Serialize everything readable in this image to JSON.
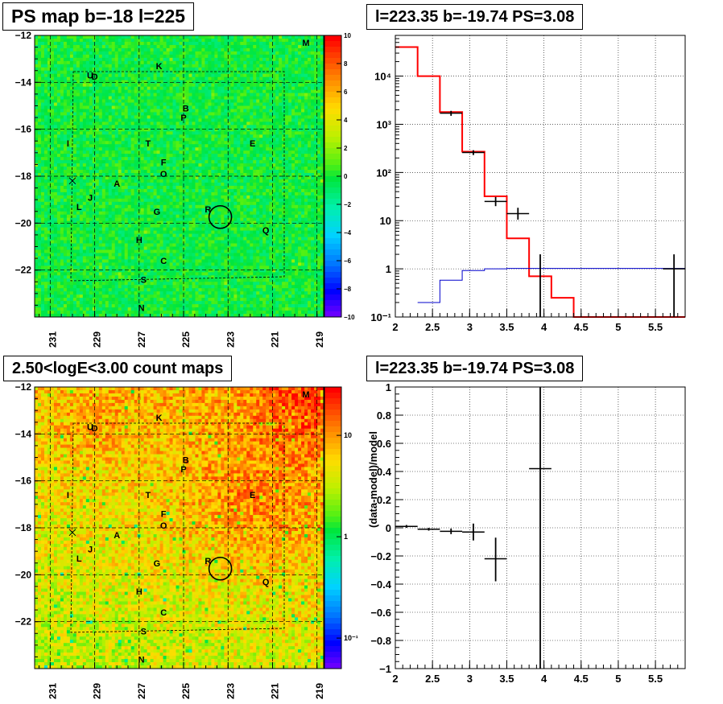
{
  "panels": {
    "tl_title": "PS map b=-18 l=225",
    "tr_title": "l=223.35 b=-19.74 PS=3.08",
    "bl_title": "2.50<logE<3.00 count maps",
    "br_title": "l=223.35 b=-19.74 PS=3.08"
  },
  "chart_data": [
    {
      "type": "heatmap",
      "name": "ps-map",
      "title": "PS map b=-18 l=225",
      "x_ticks": [
        "231",
        "229",
        "227",
        "225",
        "223",
        "221",
        "219"
      ],
      "y_ticks": [
        "-12",
        "-14",
        "-16",
        "-18",
        "-20",
        "-22"
      ],
      "xlim": [
        231.7,
        218.7
      ],
      "ylim": [
        -24,
        -12
      ],
      "colorbar": {
        "ticks": [
          "10",
          "8",
          "6",
          "4",
          "2",
          "0",
          "−2",
          "−4",
          "−6",
          "−8",
          "−10"
        ],
        "range": [
          -10,
          10
        ]
      },
      "sources": [
        {
          "label": "M",
          "l": 219.5,
          "b": -12.3
        },
        {
          "label": "K",
          "l": 226.1,
          "b": -13.3
        },
        {
          "label": "U",
          "l": 229.2,
          "b": -13.7
        },
        {
          "label": "D",
          "l": 229.0,
          "b": -13.75
        },
        {
          "label": "B",
          "l": 224.9,
          "b": -15.1
        },
        {
          "label": "P",
          "l": 225.0,
          "b": -15.5
        },
        {
          "label": "I",
          "l": 230.2,
          "b": -16.6
        },
        {
          "label": "T",
          "l": 226.6,
          "b": -16.6
        },
        {
          "label": "E",
          "l": 221.9,
          "b": -16.6
        },
        {
          "label": "F",
          "l": 225.9,
          "b": -17.4
        },
        {
          "label": "O",
          "l": 225.9,
          "b": -17.9
        },
        {
          "label": "A",
          "l": 228.0,
          "b": -18.3
        },
        {
          "label": "J",
          "l": 229.2,
          "b": -18.9
        },
        {
          "label": "L",
          "l": 229.7,
          "b": -19.3
        },
        {
          "label": "G",
          "l": 226.2,
          "b": -19.5
        },
        {
          "label": "R",
          "l": 223.9,
          "b": -19.4
        },
        {
          "label": "Q",
          "l": 221.3,
          "b": -20.3
        },
        {
          "label": "H",
          "l": 227.0,
          "b": -20.7
        },
        {
          "label": "C",
          "l": 225.9,
          "b": -21.6
        },
        {
          "label": "S",
          "l": 226.8,
          "b": -22.4
        },
        {
          "label": "N",
          "l": 226.9,
          "b": -23.6
        }
      ],
      "circle": {
        "l": 223.35,
        "b": -19.74
      }
    },
    {
      "type": "line",
      "name": "spectrum",
      "title": "l=223.35 b=-19.74 PS=3.08",
      "xlim": [
        2,
        5.9
      ],
      "ylim_log": [
        0.1,
        70000
      ],
      "x_ticks": [
        "2",
        "2.5",
        "3",
        "3.5",
        "4",
        "4.5",
        "5",
        "5.5"
      ],
      "y_ticks": [
        {
          "label": "10⁻¹",
          "v": 0.1
        },
        {
          "label": "1",
          "v": 1
        },
        {
          "label": "10",
          "v": 10
        },
        {
          "label": "10²",
          "v": 100
        },
        {
          "label": "10³",
          "v": 1000
        },
        {
          "label": "10⁴",
          "v": 10000
        }
      ],
      "series": [
        {
          "color": "#ff0000",
          "kind": "hist",
          "edges": [
            2.0,
            2.3,
            2.6,
            2.9,
            3.2,
            3.5,
            3.8,
            4.1,
            4.4,
            5.9
          ],
          "values": [
            40000,
            10000,
            1800,
            270,
            32,
            4.3,
            0.7,
            0.25,
            0.1
          ]
        },
        {
          "color": "#0000cc",
          "kind": "hist",
          "edges": [
            2.3,
            2.6,
            2.9,
            3.2,
            3.5,
            5.9
          ],
          "values": [
            0.2,
            0.58,
            0.92,
            1.0,
            1.02
          ]
        },
        {
          "color": "#000000",
          "kind": "points",
          "points": [
            {
              "x": 2.75,
              "y": 1700,
              "xerr": 0.15,
              "ylo": 1500,
              "yhi": 1900
            },
            {
              "x": 3.05,
              "y": 260,
              "xerr": 0.15,
              "ylo": 230,
              "yhi": 290
            },
            {
              "x": 3.35,
              "y": 25,
              "xerr": 0.15,
              "ylo": 20,
              "yhi": 31
            },
            {
              "x": 3.65,
              "y": 14,
              "xerr": 0.15,
              "ylo": 10.5,
              "yhi": 18.5
            },
            {
              "x": 3.95,
              "y": 0.1,
              "xerr": 0.0,
              "ylo": 0.1,
              "yhi": 2.0
            },
            {
              "x": 5.75,
              "y": 1.0,
              "xerr": 0.15,
              "ylo": 0.1,
              "yhi": 2.0
            }
          ]
        }
      ]
    },
    {
      "type": "heatmap",
      "name": "count-map",
      "title": "2.50<logE<3.00 count maps",
      "x_ticks": [
        "231",
        "229",
        "227",
        "225",
        "223",
        "221",
        "219"
      ],
      "y_ticks": [
        "-12",
        "-14",
        "-16",
        "-18",
        "-20",
        "-22"
      ],
      "colorbar": {
        "ticks": [
          {
            "label": "10",
            "v": 10
          },
          {
            "label": "1",
            "v": 1
          },
          {
            "label": "10⁻¹",
            "v": 0.1
          }
        ],
        "range": [
          0.05,
          30
        ]
      }
    },
    {
      "type": "scatter",
      "name": "residuals",
      "title": "l=223.35 b=-19.74 PS=3.08",
      "ylabel": "(data-model)/model",
      "xlim": [
        2,
        5.9
      ],
      "ylim": [
        -1,
        1
      ],
      "x_ticks": [
        "2",
        "2.5",
        "3",
        "3.5",
        "4",
        "4.5",
        "5",
        "5.5"
      ],
      "y_ticks": [
        "1",
        "0.8",
        "0.6",
        "0.4",
        "0.2",
        "0",
        "−0.2",
        "−0.4",
        "−0.6",
        "−0.8",
        "−1"
      ],
      "points": [
        {
          "x": 2.15,
          "y": 0.01,
          "xerr": 0.15,
          "ylo": 0.0,
          "yhi": 0.02
        },
        {
          "x": 2.45,
          "y": -0.01,
          "xerr": 0.15,
          "ylo": -0.02,
          "yhi": 0.0
        },
        {
          "x": 2.75,
          "y": -0.025,
          "xerr": 0.15,
          "ylo": -0.045,
          "yhi": -0.005
        },
        {
          "x": 3.05,
          "y": -0.03,
          "xerr": 0.15,
          "ylo": -0.09,
          "yhi": 0.03
        },
        {
          "x": 3.35,
          "y": -0.22,
          "xerr": 0.15,
          "ylo": -0.38,
          "yhi": -0.07
        },
        {
          "x": 3.95,
          "y": 0.42,
          "xerr": 0.15,
          "ylo": -1.0,
          "yhi": 1.0
        }
      ]
    }
  ]
}
